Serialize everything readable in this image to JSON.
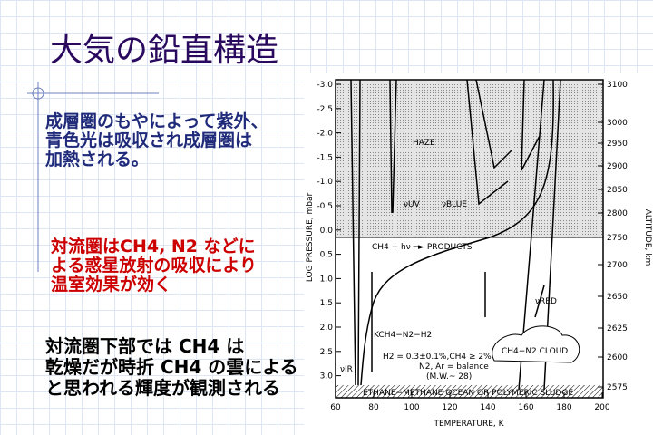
{
  "slide": {
    "title": "大気の鉛直構造",
    "paragraphs": [
      {
        "lines": [
          "成層圏のもやによって紫外、",
          "青色光は吸収され成層圏は",
          "加熱される。"
        ]
      },
      {
        "lines": [
          "対流圏はCH4, N2 などに",
          "よる惑星放射の吸収により",
          "温室効果が効く"
        ]
      },
      {
        "lines": [
          "対流圏下部では CH4  は",
          "乾燥だが時折 CH4 の雲による",
          "と思われる輝度が観測される"
        ]
      }
    ]
  },
  "figure": {
    "y_label": "LOG PRESSURE, mbar",
    "y2_label": "ALTITUDE, km",
    "x_label": "TEMPERATURE, K",
    "y_ticks": [
      "-3.0",
      "-2.5",
      "-2.0",
      "-1.5",
      "-1.0",
      "-0.5",
      "0.0",
      "0.5",
      "1.0",
      "1.5",
      "2.0",
      "2.5",
      "3.0"
    ],
    "y2_ticks": [
      "3100",
      "3000",
      "2950",
      "2900",
      "2850",
      "2800",
      "2750",
      "2700",
      "2650",
      "2625",
      "2600",
      "2575"
    ],
    "x_ticks": [
      "60",
      "80",
      "100",
      "120",
      "140",
      "160",
      "180",
      "200"
    ],
    "labels": {
      "haze": "HAZE",
      "uv": "νUV",
      "blue": "νBLUE",
      "products": "CH4 + hν ─► PRODUCTS",
      "red": "νRED",
      "k": "KCH4−N2−H2",
      "h2": "H2 = 0.3±0.1%,CH4 ≥ 2%",
      "n2": "N2, Ar = balance",
      "mw": "(M.W.~ 28)",
      "cloud": "CH4−N2 CLOUD",
      "ir": "νIR",
      "ocean": "ETHANE−METHANE OCEAN OR POLYMERIC SLUDGE"
    }
  }
}
